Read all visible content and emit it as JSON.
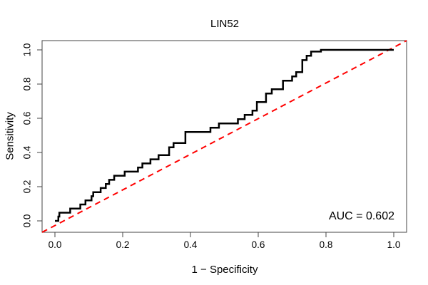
{
  "title": "LIN52",
  "axes": {
    "x": {
      "label": "1 − Specificity",
      "ticks": [
        "0.0",
        "0.2",
        "0.4",
        "0.6",
        "0.8",
        "1.0"
      ]
    },
    "y": {
      "label": "Sensitivity",
      "ticks": [
        "0.0",
        "0.2",
        "0.4",
        "0.6",
        "0.8",
        "1.0"
      ]
    }
  },
  "annotation": {
    "auc_label": "AUC = 0.602"
  },
  "colors": {
    "curve": "#000000",
    "diagonal": "#ff0000",
    "frame": "#444444"
  },
  "chart_data": {
    "type": "line",
    "title": "LIN52",
    "xlabel": "1 − Specificity",
    "ylabel": "Sensitivity",
    "xlim": [
      0,
      1
    ],
    "ylim": [
      0,
      1
    ],
    "grid": false,
    "legend": "none",
    "auc": 0.602,
    "series": [
      {
        "name": "ROC curve LIN52",
        "style": "step-solid",
        "color": "#000000",
        "points": [
          [
            0,
            0
          ],
          [
            0.01,
            0
          ],
          [
            0.01,
            0.025
          ],
          [
            0.013,
            0.025
          ],
          [
            0.013,
            0.048
          ],
          [
            0.045,
            0.048
          ],
          [
            0.045,
            0.072
          ],
          [
            0.075,
            0.072
          ],
          [
            0.075,
            0.096
          ],
          [
            0.09,
            0.096
          ],
          [
            0.09,
            0.12
          ],
          [
            0.108,
            0.12
          ],
          [
            0.108,
            0.144
          ],
          [
            0.113,
            0.144
          ],
          [
            0.113,
            0.168
          ],
          [
            0.135,
            0.168
          ],
          [
            0.135,
            0.192
          ],
          [
            0.15,
            0.192
          ],
          [
            0.15,
            0.216
          ],
          [
            0.16,
            0.216
          ],
          [
            0.16,
            0.24
          ],
          [
            0.175,
            0.24
          ],
          [
            0.175,
            0.264
          ],
          [
            0.206,
            0.264
          ],
          [
            0.206,
            0.288
          ],
          [
            0.245,
            0.288
          ],
          [
            0.245,
            0.312
          ],
          [
            0.258,
            0.312
          ],
          [
            0.258,
            0.336
          ],
          [
            0.282,
            0.336
          ],
          [
            0.282,
            0.36
          ],
          [
            0.306,
            0.36
          ],
          [
            0.306,
            0.384
          ],
          [
            0.337,
            0.384
          ],
          [
            0.337,
            0.43
          ],
          [
            0.35,
            0.43
          ],
          [
            0.35,
            0.455
          ],
          [
            0.385,
            0.455
          ],
          [
            0.385,
            0.52
          ],
          [
            0.459,
            0.52
          ],
          [
            0.459,
            0.545
          ],
          [
            0.484,
            0.545
          ],
          [
            0.484,
            0.57
          ],
          [
            0.54,
            0.57
          ],
          [
            0.54,
            0.595
          ],
          [
            0.56,
            0.595
          ],
          [
            0.56,
            0.62
          ],
          [
            0.583,
            0.62
          ],
          [
            0.583,
            0.645
          ],
          [
            0.596,
            0.645
          ],
          [
            0.596,
            0.695
          ],
          [
            0.623,
            0.695
          ],
          [
            0.623,
            0.745
          ],
          [
            0.64,
            0.745
          ],
          [
            0.64,
            0.77
          ],
          [
            0.673,
            0.77
          ],
          [
            0.673,
            0.82
          ],
          [
            0.7,
            0.82
          ],
          [
            0.7,
            0.845
          ],
          [
            0.712,
            0.845
          ],
          [
            0.712,
            0.87
          ],
          [
            0.73,
            0.87
          ],
          [
            0.73,
            0.94
          ],
          [
            0.743,
            0.94
          ],
          [
            0.743,
            0.966
          ],
          [
            0.756,
            0.966
          ],
          [
            0.756,
            0.99
          ],
          [
            0.785,
            0.99
          ],
          [
            0.785,
            1
          ],
          [
            1,
            1
          ]
        ]
      },
      {
        "name": "chance diagonal",
        "style": "dashed",
        "color": "#ff0000",
        "points": [
          [
            0,
            0
          ],
          [
            1,
            1
          ]
        ]
      }
    ]
  }
}
